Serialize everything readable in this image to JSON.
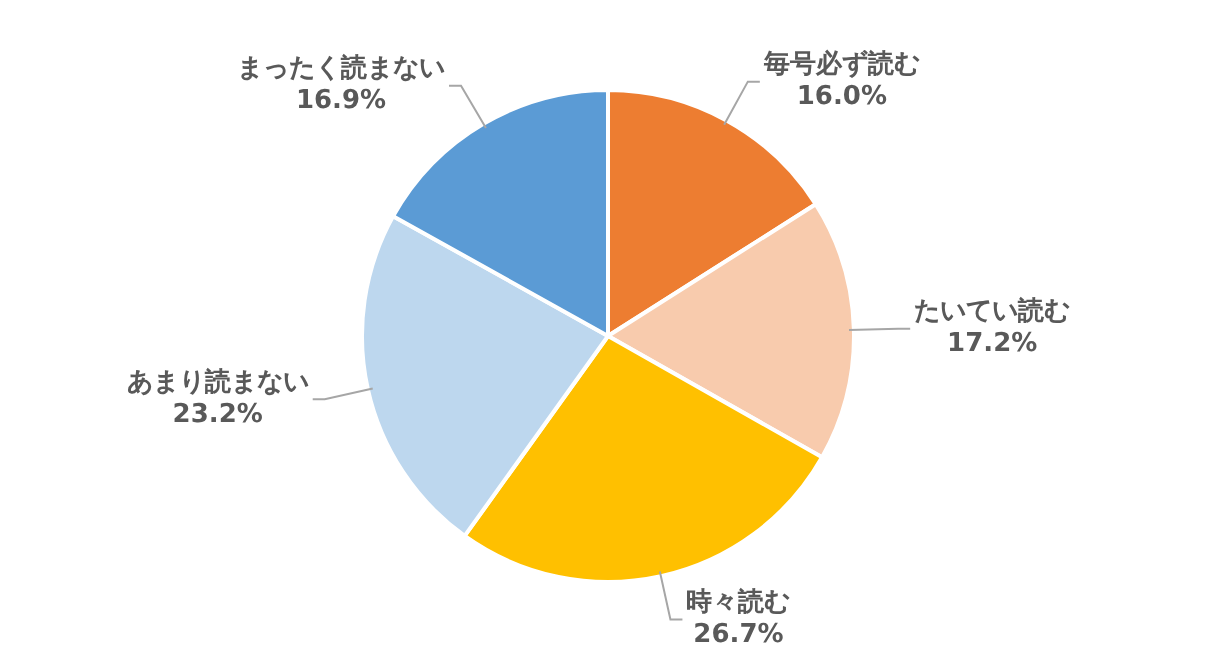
{
  "chart_data": {
    "type": "pie",
    "categories": [
      "毎号必ず読む",
      "たいてい読む",
      "時々読む",
      "あまり読まない",
      "まったく読まない"
    ],
    "values": [
      16.0,
      17.2,
      26.7,
      23.2,
      16.9
    ],
    "colors": [
      "#ed7d31",
      "#f8cbad",
      "#ffc000",
      "#bdd7ee",
      "#5b9bd5"
    ],
    "value_labels": [
      "16.0%",
      "17.2%",
      "26.7%",
      "23.2%",
      "16.9%"
    ],
    "legend": false
  }
}
